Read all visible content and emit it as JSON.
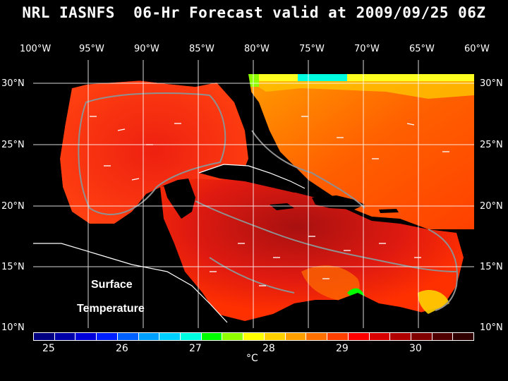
{
  "title": "NRL IASNFS  06-Hr Forecast valid at 2009/09/25 06Z",
  "lon_labels": [
    "100°W",
    "95°W",
    "90°W",
    "85°W",
    "80°W",
    "75°W",
    "70°W",
    "65°W",
    "60°W"
  ],
  "lat_labels": [
    "30°N",
    "25°N",
    "20°N",
    "15°N",
    "10°N"
  ],
  "overlay": {
    "line1": "Surface",
    "line2": "Temperature"
  },
  "colorbar": {
    "colors": [
      "#000080",
      "#0000a8",
      "#0000d8",
      "#0020ff",
      "#0060ff",
      "#00a0ff",
      "#00d0ff",
      "#00ffe0",
      "#00ff00",
      "#90ff00",
      "#ffff00",
      "#ffd000",
      "#ffa000",
      "#ff7000",
      "#ff4000",
      "#ff0000",
      "#d80000",
      "#b00000",
      "#800000",
      "#500000",
      "#300000"
    ],
    "tick_labels": [
      "25",
      "26",
      "27",
      "28",
      "29",
      "30"
    ],
    "unit": "°C"
  },
  "map_colors": {
    "ocean_warm": "#ff3000",
    "ocean_hot": "#cc1010",
    "ocean_mid": "#ff6000",
    "ocean_cool": "#ffc000",
    "land": "#000000",
    "grid": "#ffffff",
    "contour": "#909090"
  }
}
